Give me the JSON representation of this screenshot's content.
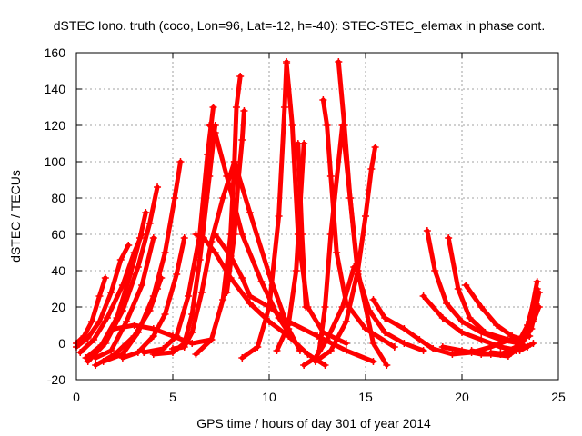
{
  "chart_data": {
    "type": "scatter",
    "title": "dSTEC Iono. truth (coco, Lon=96, Lat=-12, h=-40): STEC-STEC_elemax in phase cont.",
    "xlabel": "GPS time / hours of day 301 of year 2014",
    "ylabel": "dSTEC  / TECUs",
    "xlim": [
      0,
      25
    ],
    "ylim": [
      -20,
      160
    ],
    "xticks": [
      0,
      5,
      10,
      15,
      20,
      25
    ],
    "yticks": [
      -20,
      0,
      20,
      40,
      60,
      80,
      100,
      120,
      140,
      160
    ],
    "grid": true,
    "marker": "plus",
    "color": "#ff0000",
    "series": [
      {
        "x": [
          0.0,
          0.4,
          0.8,
          1.2,
          1.5
        ],
        "y": [
          0,
          4,
          12,
          26,
          36
        ]
      },
      {
        "x": [
          0.0,
          0.6,
          1.2,
          1.8,
          2.3,
          2.7
        ],
        "y": [
          -2,
          3,
          12,
          28,
          46,
          54
        ]
      },
      {
        "x": [
          0.2,
          0.9,
          1.6,
          2.4,
          3.0,
          3.4
        ],
        "y": [
          -5,
          2,
          14,
          32,
          50,
          60
        ]
      },
      {
        "x": [
          0.5,
          1.3,
          2.1,
          2.8,
          3.3,
          3.6
        ],
        "y": [
          -8,
          -1,
          14,
          38,
          58,
          72
        ]
      },
      {
        "x": [
          0.6,
          1.5,
          2.4,
          3.2,
          3.8,
          4.2
        ],
        "y": [
          -10,
          0,
          18,
          42,
          66,
          86
        ]
      },
      {
        "x": [
          1.0,
          1.8,
          2.6,
          3.4,
          4.0
        ],
        "y": [
          -8,
          -4,
          12,
          32,
          58
        ]
      },
      {
        "x": [
          1.0,
          2.0,
          3.0,
          3.8,
          4.2,
          4.4
        ],
        "y": [
          -12,
          -6,
          4,
          18,
          30,
          36
        ]
      },
      {
        "x": [
          1.4,
          2.4,
          3.2,
          4.0,
          4.6,
          5.1,
          5.4
        ],
        "y": [
          -10,
          -6,
          6,
          26,
          50,
          80,
          100
        ]
      },
      {
        "x": [
          2.4,
          3.2,
          4.0,
          4.6,
          5.2,
          5.6
        ],
        "y": [
          -8,
          -5,
          4,
          16,
          38,
          58
        ]
      },
      {
        "x": [
          2.0,
          3.0,
          4.0,
          5.0,
          6.0,
          7.0
        ],
        "y": [
          8,
          10,
          8,
          4,
          0,
          2
        ]
      },
      {
        "x": [
          3.5,
          4.5,
          5.2,
          5.8,
          6.4,
          6.8,
          7.1
        ],
        "y": [
          -5,
          -3,
          4,
          26,
          60,
          104,
          130
        ]
      },
      {
        "x": [
          4.0,
          5.0,
          5.6,
          6.0,
          6.4,
          6.9,
          7.2
        ],
        "y": [
          -6,
          -5,
          0,
          16,
          46,
          92,
          120
        ]
      },
      {
        "x": [
          5.0,
          5.6,
          6.0,
          6.5,
          7.0,
          7.6,
          8.2,
          9.0,
          10.0,
          11.0,
          11.6
        ],
        "y": [
          -3,
          -2,
          6,
          28,
          56,
          80,
          100,
          72,
          38,
          8,
          -4
        ]
      },
      {
        "x": [
          6.2,
          6.6,
          7.2,
          8.0,
          9.0,
          10.0,
          11.0,
          12.0,
          12.9
        ],
        "y": [
          60,
          58,
          50,
          36,
          22,
          12,
          4,
          -6,
          -12
        ]
      },
      {
        "x": [
          6.9,
          7.2,
          7.8,
          8.6,
          9.6,
          10.5,
          11.0
        ],
        "y": [
          120,
          116,
          92,
          60,
          34,
          14,
          6
        ]
      },
      {
        "x": [
          6.2,
          7.0,
          7.6,
          8.0,
          8.2,
          8.3,
          8.5
        ],
        "y": [
          -6,
          2,
          24,
          60,
          100,
          130,
          147
        ]
      },
      {
        "x": [
          7.8,
          8.2,
          8.4,
          8.6,
          8.7
        ],
        "y": [
          28,
          60,
          90,
          112,
          128
        ]
      },
      {
        "x": [
          7.2,
          8.0,
          8.6,
          9.0,
          10.0,
          11.0,
          12.5,
          14.0,
          15.4
        ],
        "y": [
          60,
          48,
          36,
          26,
          20,
          12,
          4,
          -4,
          -10
        ]
      },
      {
        "x": [
          8.6,
          9.4,
          10.0,
          10.5,
          10.8,
          10.9
        ],
        "y": [
          -8,
          -2,
          20,
          70,
          130,
          155
        ]
      },
      {
        "x": [
          10.4,
          11.0,
          11.4,
          11.8
        ],
        "y": [
          -4,
          10,
          40,
          110
        ]
      },
      {
        "x": [
          10.9,
          11.2,
          11.5,
          12.0,
          12.8,
          14.0
        ],
        "y": [
          154,
          120,
          60,
          20,
          6,
          0
        ]
      },
      {
        "x": [
          11.5,
          11.7,
          11.9
        ],
        "y": [
          110,
          60,
          20
        ]
      },
      {
        "x": [
          12.6,
          12.9,
          13.2,
          13.8,
          14.6,
          15.4,
          16.1
        ],
        "y": [
          -4,
          20,
          60,
          120,
          40,
          0,
          -12
        ]
      },
      {
        "x": [
          12.8,
          13.0,
          13.2,
          13.5,
          14.0,
          15.0,
          16.5
        ],
        "y": [
          134,
          120,
          92,
          50,
          22,
          8,
          -2
        ]
      },
      {
        "x": [
          13.6,
          13.9,
          14.2,
          14.6,
          15.2,
          16.0,
          17.0,
          18.0
        ],
        "y": [
          155,
          120,
          80,
          38,
          18,
          6,
          0,
          -4
        ]
      },
      {
        "x": [
          12.4,
          13.2,
          14.0,
          14.6,
          15.0,
          15.3,
          15.5
        ],
        "y": [
          -10,
          -4,
          12,
          40,
          70,
          96,
          108
        ]
      },
      {
        "x": [
          11.8,
          12.4,
          13.0,
          13.8,
          14.4
        ],
        "y": [
          -12,
          -8,
          2,
          20,
          42
        ]
      },
      {
        "x": [
          15.4,
          16.0,
          17.0,
          17.8,
          18.5,
          19.5,
          20.5,
          21.5,
          22.5,
          23.5
        ],
        "y": [
          24,
          14,
          8,
          2,
          -3,
          -6,
          -5,
          -2,
          2,
          4
        ]
      },
      {
        "x": [
          18.2,
          18.6,
          19.2,
          20.0,
          21.0,
          22.0,
          23.0
        ],
        "y": [
          62,
          40,
          22,
          12,
          6,
          2,
          0
        ]
      },
      {
        "x": [
          19.3,
          19.8,
          20.4,
          21.2,
          22.4,
          23.4
        ],
        "y": [
          58,
          30,
          14,
          6,
          2,
          -2
        ]
      },
      {
        "x": [
          18.0,
          19.0,
          20.0,
          21.0,
          22.0,
          23.0,
          23.7
        ],
        "y": [
          26,
          14,
          6,
          2,
          -2,
          -4,
          0
        ]
      },
      {
        "x": [
          20.2,
          21.0,
          21.8,
          22.6,
          23.2
        ],
        "y": [
          32,
          20,
          10,
          4,
          2
        ]
      },
      {
        "x": [
          19.0,
          20.0,
          21.0,
          22.0,
          22.8,
          23.4,
          23.9
        ],
        "y": [
          -2,
          -4,
          -6,
          -6,
          -2,
          10,
          30
        ]
      },
      {
        "x": [
          20.5,
          21.5,
          22.4,
          23.0,
          23.5,
          23.9
        ],
        "y": [
          -4,
          -6,
          -7,
          -2,
          12,
          34
        ]
      },
      {
        "x": [
          21.5,
          22.4,
          23.0,
          23.6,
          24.0
        ],
        "y": [
          -5,
          -6,
          -2,
          8,
          28
        ]
      },
      {
        "x": [
          22.0,
          22.8,
          23.3,
          23.7,
          24.0
        ],
        "y": [
          -6,
          -4,
          4,
          12,
          20
        ]
      }
    ]
  }
}
